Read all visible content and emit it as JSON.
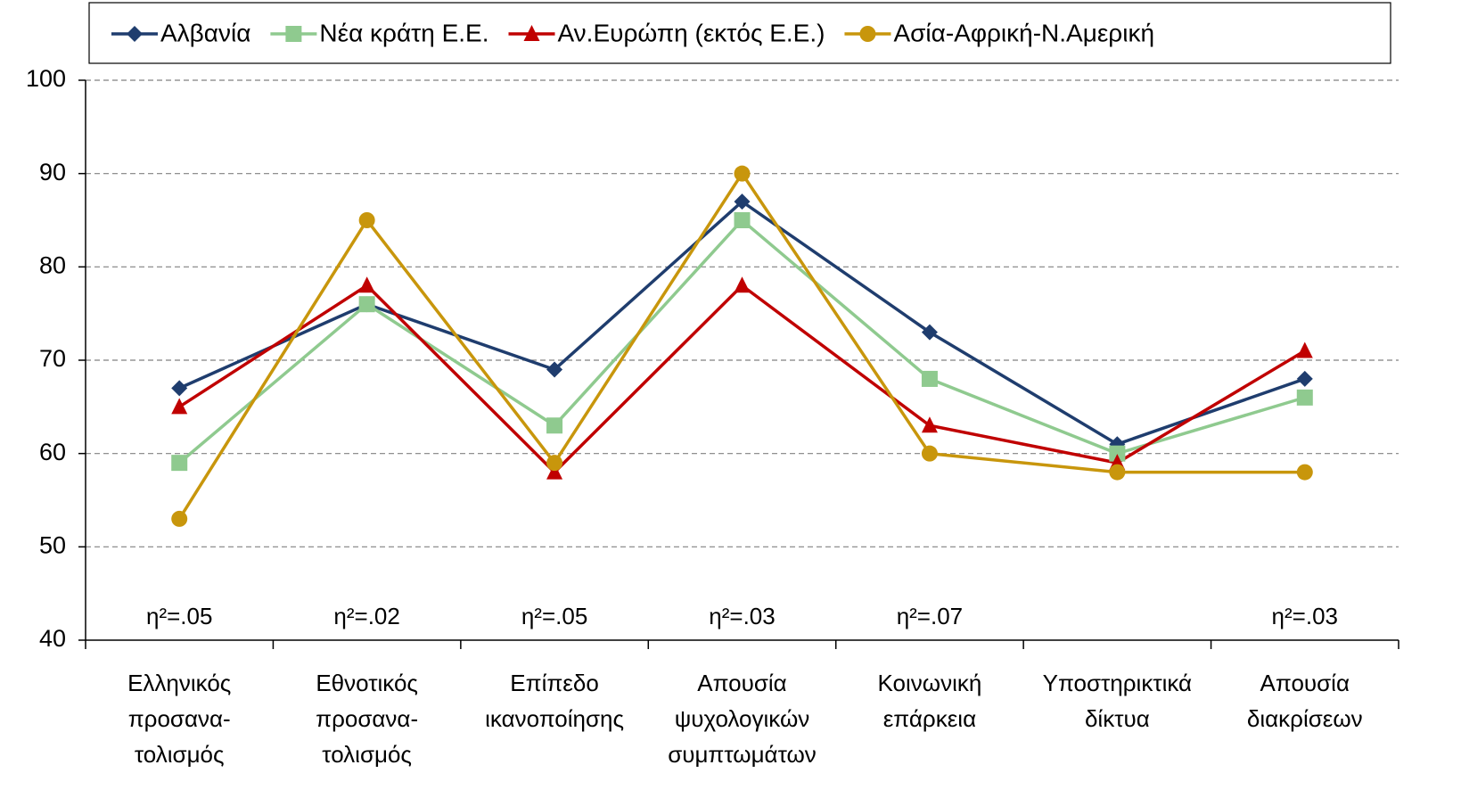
{
  "chart_data": {
    "type": "line",
    "categories": [
      [
        "Ελληνικός",
        "προσανα-",
        "τολισμός"
      ],
      [
        "Εθνοτικός",
        "προσανα-",
        "τολισμός"
      ],
      [
        "Επίπεδο",
        "ικανοποίησης"
      ],
      [
        "Απουσία",
        "ψυχολογικών",
        "συμπτωμάτων"
      ],
      [
        "Κοινωνική",
        "επάρκεια"
      ],
      [
        "Υποστηρικτικά",
        "δίκτυα"
      ],
      [
        "Απουσία",
        "διακρίσεων"
      ]
    ],
    "annotations": [
      "η²=.05",
      "η²=.02",
      "η²=.05",
      "η²=.03",
      "η²=.07",
      null,
      "η²=.03"
    ],
    "series": [
      {
        "name": "Αλβανία",
        "color": "#1f3d6e",
        "marker": "diamond",
        "values": [
          67,
          76,
          69,
          87,
          73,
          61,
          68
        ]
      },
      {
        "name": "Νέα κράτη Ε.Ε.",
        "color": "#8fca8f",
        "marker": "square",
        "values": [
          59,
          76,
          63,
          85,
          68,
          60,
          66
        ]
      },
      {
        "name": "Αν.Ευρώπη (εκτός Ε.Ε.)",
        "color": "#c00000",
        "marker": "triangle",
        "values": [
          65,
          78,
          58,
          78,
          63,
          59,
          71
        ]
      },
      {
        "name": "Ασία-Αφρική-Ν.Αμερική",
        "color": "#c8960c",
        "marker": "circle",
        "values": [
          53,
          85,
          59,
          90,
          60,
          58,
          58
        ]
      }
    ],
    "ylim": [
      40,
      100
    ],
    "yticks": [
      40,
      50,
      60,
      70,
      80,
      90,
      100
    ],
    "grid": true,
    "legend": "top"
  }
}
